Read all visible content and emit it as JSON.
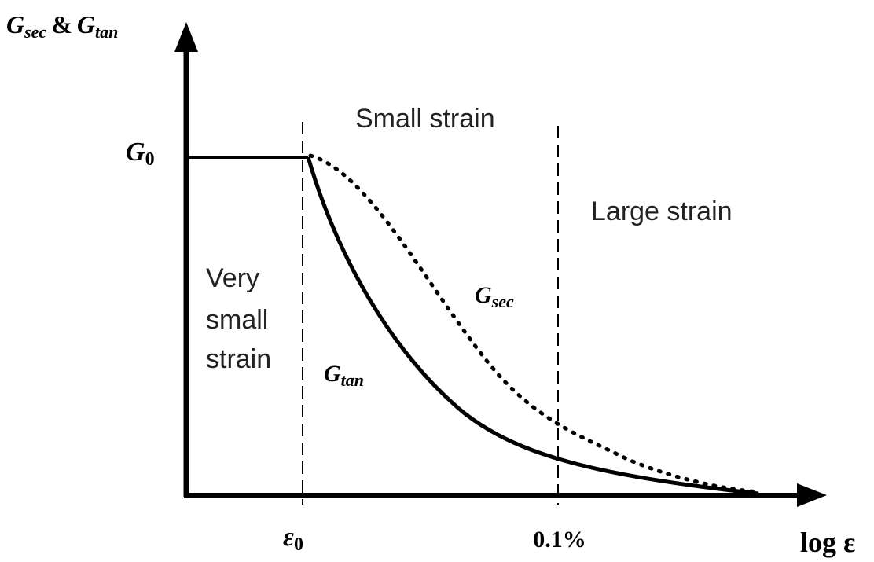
{
  "y_axis_label": {
    "left": {
      "base": "G",
      "sub": "sec"
    },
    "joiner": "&",
    "right": {
      "base": "G",
      "sub": "tan"
    }
  },
  "x_axis_label": "log ε",
  "level_label": {
    "base": "G",
    "sub": "0"
  },
  "x_markers": [
    {
      "base": "ε",
      "sub": "0"
    },
    "0.1%"
  ],
  "regions": {
    "very_small": [
      "Very",
      "small",
      "strain"
    ],
    "small": "Small strain",
    "large": "Large strain"
  },
  "curve_labels": {
    "secant": {
      "base": "G",
      "sub": "sec"
    },
    "tangent": {
      "base": "G",
      "sub": "tan"
    }
  }
}
